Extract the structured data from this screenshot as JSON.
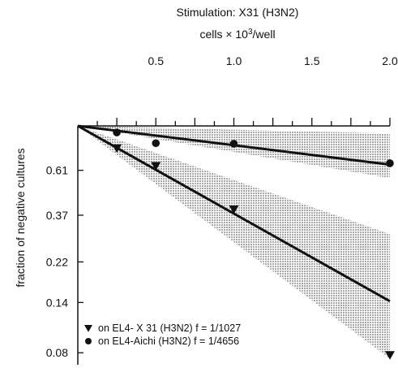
{
  "chart_data": {
    "type": "scatter",
    "title": "Stimulation: X31 (H3N2)",
    "xlabel": "cells × 10³/well",
    "ylabel": "fraction of negative cultures",
    "x_axis_position": "top",
    "xlim": [
      0,
      2.0
    ],
    "x_ticks": [
      0.5,
      1.0,
      1.5,
      2.0
    ],
    "x_tick_labels": [
      "0.5",
      "1.0",
      "1.5",
      "2.0"
    ],
    "y_scale": "log",
    "ylim": [
      0.07,
      1.0
    ],
    "y_ticks": [
      0.61,
      0.37,
      0.22,
      0.14,
      0.08
    ],
    "y_tick_labels": [
      "0.61",
      "0.37",
      "0.22",
      "0.14",
      "0.08"
    ],
    "series": [
      {
        "name": "on EL4- X 31 (H3N2) f = 1/1027",
        "marker": "triangle-down",
        "color": "#111111",
        "points": [
          {
            "x": 0.25,
            "y": 0.78
          },
          {
            "x": 0.5,
            "y": 0.64
          },
          {
            "x": 1.0,
            "y": 0.395
          },
          {
            "x": 2.0,
            "y": 0.078
          }
        ],
        "fit": {
          "x": [
            0,
            2.0
          ],
          "y": [
            1.0,
            0.142
          ]
        }
      },
      {
        "name": "on EL4-Aichi (H3N2) f = 1/4656",
        "marker": "circle",
        "color": "#111111",
        "points": [
          {
            "x": 0.25,
            "y": 0.93
          },
          {
            "x": 0.5,
            "y": 0.825
          },
          {
            "x": 1.0,
            "y": 0.82
          },
          {
            "x": 2.0,
            "y": 0.66
          }
        ],
        "fit": {
          "x": [
            0,
            2.0
          ],
          "y": [
            1.0,
            0.65
          ]
        }
      }
    ],
    "confidence_bands": {
      "color": "#b8b8b8",
      "bands": [
        {
          "x": [
            0,
            2.0
          ],
          "y_low": [
            1.0,
            0.075
          ],
          "y_high": [
            1.0,
            0.3
          ]
        },
        {
          "x": [
            0,
            2.0
          ],
          "y_low": [
            1.0,
            0.56
          ],
          "y_high": [
            1.0,
            0.92
          ]
        }
      ]
    },
    "grid": false,
    "legend_position": "bottom-left"
  }
}
